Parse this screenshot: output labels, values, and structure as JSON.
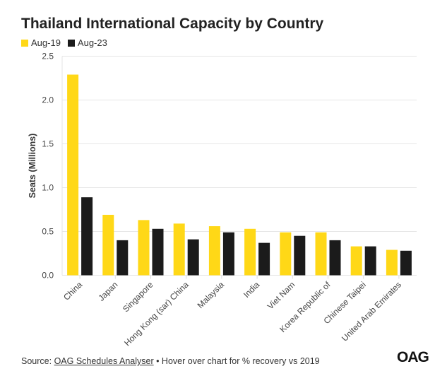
{
  "chart_data": {
    "type": "bar",
    "title": "Thailand International Capacity by Country",
    "ylabel": "Seats (Millions)",
    "xlabel": "",
    "ylim": [
      0,
      2.5
    ],
    "yticks": [
      "0.0",
      "0.5",
      "1.0",
      "1.5",
      "2.0",
      "2.5"
    ],
    "grid": true,
    "legend": "top-left",
    "categories": [
      "China",
      "Japan",
      "Singapore",
      "Hong Kong (sar) China",
      "Malaysia",
      "India",
      "Viet Nam",
      "Korea Republic of",
      "Chinese Taipei",
      "United Arab Emirates"
    ],
    "series": [
      {
        "name": "Aug-19",
        "color": "#FFD817",
        "values": [
          2.29,
          0.69,
          0.63,
          0.59,
          0.56,
          0.53,
          0.49,
          0.49,
          0.33,
          0.29
        ]
      },
      {
        "name": "Aug-23",
        "color": "#1B1B1B",
        "values": [
          0.89,
          0.4,
          0.53,
          0.41,
          0.49,
          0.37,
          0.45,
          0.4,
          0.33,
          0.28
        ]
      }
    ]
  },
  "footer": {
    "prefix": "Source: ",
    "link": "OAG Schedules Analyser",
    "suffix": " • Hover over chart for % recovery vs 2019"
  },
  "logo": "OAG"
}
